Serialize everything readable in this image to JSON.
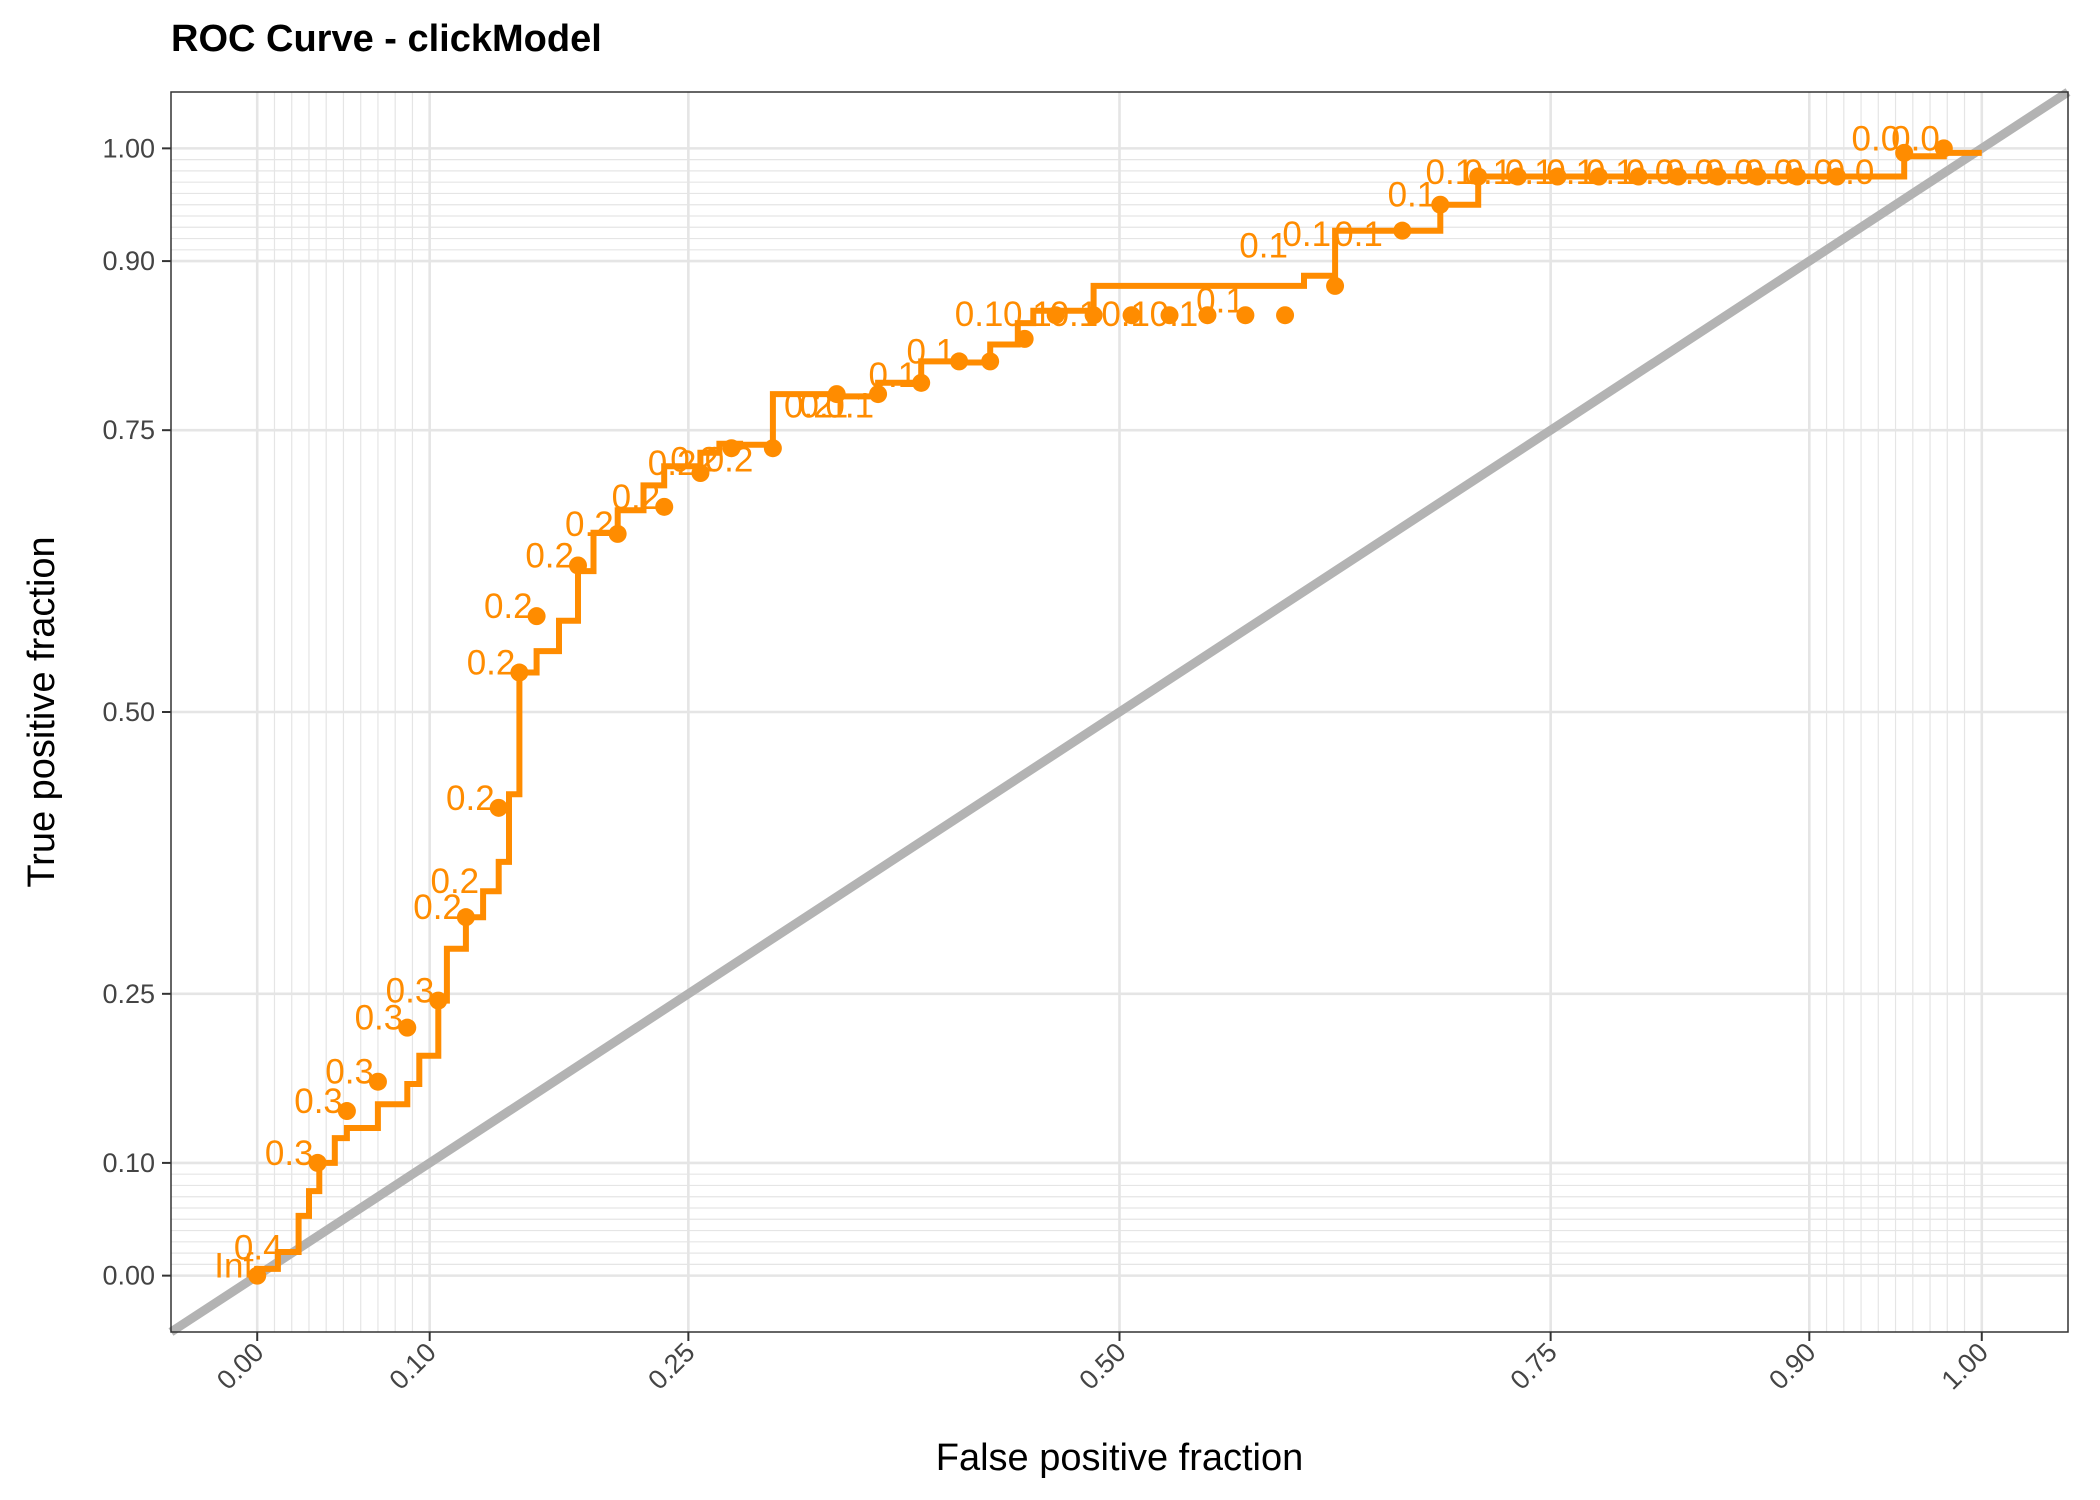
{
  "chart_data": {
    "type": "line",
    "title": "ROC Curve - clickModel",
    "xlabel": "False positive fraction",
    "ylabel": "True positive fraction",
    "xlim": [
      -0.05,
      1.05
    ],
    "ylim": [
      -0.05,
      1.05
    ],
    "x_ticks": [
      0.0,
      0.1,
      0.25,
      0.5,
      0.75,
      0.9,
      1.0
    ],
    "x_tick_labels": [
      "0.00",
      "0.10",
      "0.25",
      "0.50",
      "0.75",
      "0.90",
      "1.00"
    ],
    "y_ticks": [
      0.0,
      0.1,
      0.25,
      0.5,
      0.75,
      0.9,
      1.0
    ],
    "y_tick_labels": [
      "0.00",
      "0.10",
      "0.25",
      "0.50",
      "0.75",
      "0.90",
      "1.00"
    ],
    "grid": true,
    "legend": "none",
    "colors": {
      "roc": "#FF8C00",
      "reference": "#B3B3B3",
      "grid": "#E5E5E5"
    },
    "series": [
      {
        "name": "",
        "x": [
          0.0,
          0.0,
          0.012,
          0.012,
          0.024,
          0.024,
          0.03,
          0.03,
          0.036,
          0.036,
          0.045,
          0.045,
          0.052,
          0.052,
          0.07,
          0.07,
          0.087,
          0.087,
          0.094,
          0.094,
          0.105,
          0.105,
          0.11,
          0.11,
          0.121,
          0.121,
          0.131,
          0.131,
          0.14,
          0.14,
          0.146,
          0.146,
          0.152,
          0.152,
          0.162,
          0.162,
          0.175,
          0.175,
          0.186,
          0.186,
          0.195,
          0.195,
          0.209,
          0.209,
          0.224,
          0.224,
          0.236,
          0.236,
          0.257,
          0.257,
          0.268,
          0.268,
          0.28,
          0.28,
          0.299,
          0.299,
          0.336,
          0.336,
          0.36,
          0.36,
          0.385,
          0.385,
          0.407,
          0.407,
          0.425,
          0.425,
          0.441,
          0.441,
          0.45,
          0.45,
          0.463,
          0.463,
          0.485,
          0.485,
          0.607,
          0.607,
          0.625,
          0.625,
          0.636,
          0.636,
          0.686,
          0.686,
          0.708,
          0.708,
          0.727,
          0.727,
          0.955,
          0.955,
          0.978,
          0.978,
          1.0
        ],
        "y": [
          0.0,
          0.006,
          0.006,
          0.021,
          0.021,
          0.053,
          0.053,
          0.075,
          0.075,
          0.1,
          0.1,
          0.122,
          0.122,
          0.131,
          0.131,
          0.152,
          0.152,
          0.17,
          0.17,
          0.195,
          0.195,
          0.244,
          0.244,
          0.29,
          0.29,
          0.318,
          0.318,
          0.341,
          0.341,
          0.367,
          0.367,
          0.427,
          0.427,
          0.535,
          0.535,
          0.554,
          0.554,
          0.581,
          0.581,
          0.625,
          0.625,
          0.659,
          0.659,
          0.679,
          0.679,
          0.701,
          0.701,
          0.718,
          0.718,
          0.73,
          0.73,
          0.738,
          0.738,
          0.737,
          0.737,
          0.782,
          0.782,
          0.78,
          0.78,
          0.792,
          0.792,
          0.811,
          0.811,
          0.81,
          0.81,
          0.826,
          0.826,
          0.845,
          0.845,
          0.856,
          0.856,
          0.856,
          0.856,
          0.878,
          0.878,
          0.887,
          0.887,
          0.927,
          0.927,
          0.927,
          0.927,
          0.95,
          0.95,
          0.975,
          0.975,
          0.975,
          0.975,
          0.993,
          0.993,
          0.996,
          0.996
        ]
      }
    ],
    "points": {
      "x": [
        0.0,
        0.035,
        0.052,
        0.07,
        0.087,
        0.105,
        0.121,
        0.14,
        0.152,
        0.162,
        0.186,
        0.209,
        0.236,
        0.257,
        0.275,
        0.299,
        0.336,
        0.36,
        0.385,
        0.407,
        0.425,
        0.445,
        0.463,
        0.485,
        0.507,
        0.529,
        0.551,
        0.573,
        0.596,
        0.625,
        0.664,
        0.686,
        0.708,
        0.731,
        0.754,
        0.778,
        0.801,
        0.824,
        0.847,
        0.87,
        0.893,
        0.916,
        0.955,
        0.978
      ],
      "y": [
        0.0,
        0.1,
        0.146,
        0.172,
        0.22,
        0.244,
        0.318,
        0.415,
        0.535,
        0.585,
        0.63,
        0.658,
        0.682,
        0.712,
        0.734,
        0.734,
        0.782,
        0.782,
        0.792,
        0.811,
        0.811,
        0.831,
        0.852,
        0.852,
        0.852,
        0.852,
        0.852,
        0.852,
        0.852,
        0.878,
        0.927,
        0.95,
        0.975,
        0.975,
        0.975,
        0.975,
        0.975,
        0.975,
        0.975,
        0.975,
        0.975,
        0.975,
        0.996,
        1.0
      ]
    },
    "cutoff_labels": [
      {
        "x": 0.0,
        "y": 0.0,
        "text": "Inf"
      },
      {
        "x": 0.017,
        "y": 0.016,
        "text": "0.4"
      },
      {
        "x": 0.035,
        "y": 0.1,
        "text": "0.3"
      },
      {
        "x": 0.052,
        "y": 0.146,
        "text": "0.3"
      },
      {
        "x": 0.07,
        "y": 0.172,
        "text": "0.3"
      },
      {
        "x": 0.087,
        "y": 0.22,
        "text": "0.3"
      },
      {
        "x": 0.105,
        "y": 0.244,
        "text": "0.3"
      },
      {
        "x": 0.121,
        "y": 0.318,
        "text": "0.2"
      },
      {
        "x": 0.131,
        "y": 0.341,
        "text": "0.2"
      },
      {
        "x": 0.14,
        "y": 0.415,
        "text": "0.2"
      },
      {
        "x": 0.152,
        "y": 0.535,
        "text": "0.2"
      },
      {
        "x": 0.162,
        "y": 0.585,
        "text": "0.2"
      },
      {
        "x": 0.186,
        "y": 0.63,
        "text": "0.2"
      },
      {
        "x": 0.209,
        "y": 0.658,
        "text": "0.2"
      },
      {
        "x": 0.236,
        "y": 0.682,
        "text": "0.2"
      },
      {
        "x": 0.257,
        "y": 0.712,
        "text": "0.2"
      },
      {
        "x": 0.27,
        "y": 0.715,
        "text": "0.2"
      },
      {
        "x": 0.29,
        "y": 0.715,
        "text": "0.2"
      },
      {
        "x": 0.336,
        "y": 0.763,
        "text": "0.2"
      },
      {
        "x": 0.345,
        "y": 0.763,
        "text": "0.1"
      },
      {
        "x": 0.36,
        "y": 0.763,
        "text": "0.1"
      },
      {
        "x": 0.385,
        "y": 0.79,
        "text": "0.1"
      },
      {
        "x": 0.407,
        "y": 0.811,
        "text": "0.1"
      },
      {
        "x": 0.435,
        "y": 0.844,
        "text": "0.1"
      },
      {
        "x": 0.463,
        "y": 0.844,
        "text": "0.1"
      },
      {
        "x": 0.49,
        "y": 0.844,
        "text": "0.1"
      },
      {
        "x": 0.52,
        "y": 0.844,
        "text": "0.1"
      },
      {
        "x": 0.548,
        "y": 0.844,
        "text": "0.1"
      },
      {
        "x": 0.575,
        "y": 0.856,
        "text": "0.1"
      },
      {
        "x": 0.6,
        "y": 0.905,
        "text": "0.1"
      },
      {
        "x": 0.625,
        "y": 0.915,
        "text": "0.1"
      },
      {
        "x": 0.655,
        "y": 0.915,
        "text": "0.1"
      },
      {
        "x": 0.686,
        "y": 0.95,
        "text": "0.1"
      },
      {
        "x": 0.708,
        "y": 0.97,
        "text": "0.1"
      },
      {
        "x": 0.73,
        "y": 0.97,
        "text": "0.1"
      },
      {
        "x": 0.754,
        "y": 0.97,
        "text": "0.1"
      },
      {
        "x": 0.778,
        "y": 0.97,
        "text": "0.1"
      },
      {
        "x": 0.801,
        "y": 0.97,
        "text": "0.1"
      },
      {
        "x": 0.824,
        "y": 0.97,
        "text": "0.0"
      },
      {
        "x": 0.847,
        "y": 0.97,
        "text": "0.0"
      },
      {
        "x": 0.87,
        "y": 0.97,
        "text": "0.0"
      },
      {
        "x": 0.893,
        "y": 0.97,
        "text": "0.0"
      },
      {
        "x": 0.916,
        "y": 0.97,
        "text": "0.0"
      },
      {
        "x": 0.94,
        "y": 0.97,
        "text": "0.0"
      },
      {
        "x": 0.955,
        "y": 1.0,
        "text": "0.0"
      },
      {
        "x": 0.978,
        "y": 1.0,
        "text": "0.0"
      }
    ],
    "reference_line": {
      "x": [
        -0.05,
        1.05
      ],
      "y": [
        -0.05,
        1.05
      ]
    }
  }
}
